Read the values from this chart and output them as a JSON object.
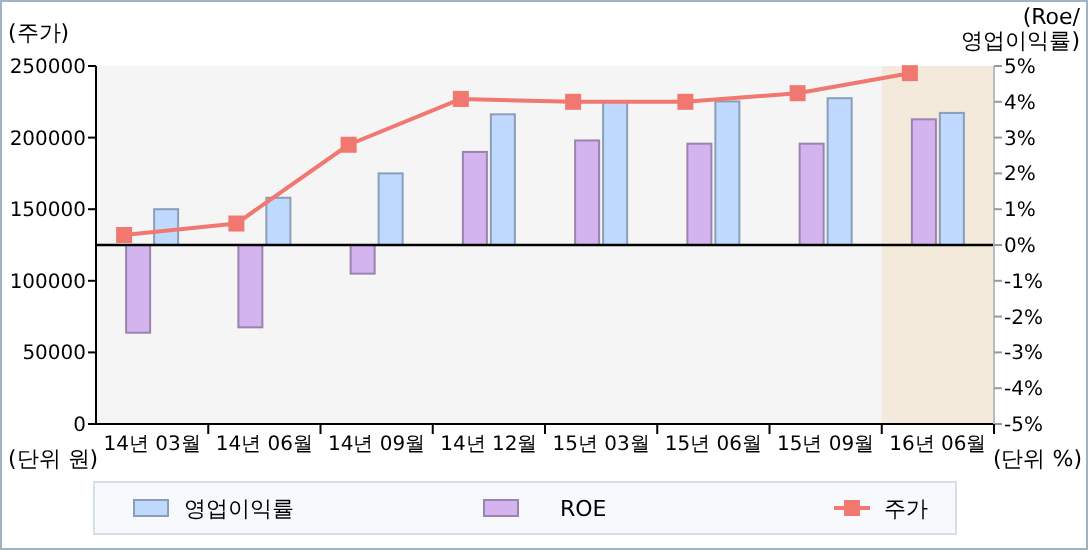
{
  "chart_data": {
    "type": "bar",
    "ylabel": "(주가)",
    "y2label": "(Roe/\n영업이익률)",
    "categories": [
      "14년 03월",
      "14년 06월",
      "14년 09월",
      "14년 12월",
      "15년 03월",
      "15년 06월",
      "15년 09월",
      "16년 06월"
    ],
    "series": [
      {
        "name": "ROE",
        "color": "#d4b4ee",
        "axis": "y2",
        "values": [
          -2.45,
          -2.3,
          -0.8,
          2.6,
          2.92,
          2.83,
          2.83,
          3.51
        ]
      },
      {
        "name": "영업이익률",
        "color": "#c0daff",
        "axis": "y2",
        "values": [
          1.0,
          1.32,
          2.0,
          3.65,
          4.01,
          4.01,
          4.1,
          3.69
        ]
      },
      {
        "name": "주가",
        "type": "line",
        "color": "#f07870",
        "marker": "square",
        "values": [
          132000,
          140000,
          195000,
          227000,
          225000,
          225000,
          231000,
          245000
        ]
      }
    ],
    "ylim": [
      0,
      250000
    ],
    "yticks": [
      0,
      50000,
      100000,
      150000,
      200000,
      250000
    ],
    "y2lim": [
      -5,
      5
    ],
    "y2ticks": [
      {
        "value": 5,
        "label": "5%"
      },
      {
        "value": 4,
        "label": "4%"
      },
      {
        "value": 3,
        "label": "3%"
      },
      {
        "value": 2,
        "label": "2%"
      },
      {
        "value": 1,
        "label": "1%"
      },
      {
        "value": 0,
        "label": "0%"
      },
      {
        "value": -1,
        "label": "-1%"
      },
      {
        "value": -2,
        "label": "-2%"
      },
      {
        "value": -3,
        "label": "-3%"
      },
      {
        "value": -4,
        "label": "-4%"
      },
      {
        "value": -5,
        "label": "-5%"
      }
    ],
    "bands": [
      {
        "axis": "x",
        "from": "16년 06월",
        "to": "16년 06월",
        "color": "#f3eadb"
      }
    ],
    "annotations": [
      "(단위 원)",
      "(단위 %)"
    ],
    "ref_lines": [
      {
        "axis": "y2",
        "value": 0,
        "color": "#000000"
      }
    ],
    "legend": "bottom"
  }
}
